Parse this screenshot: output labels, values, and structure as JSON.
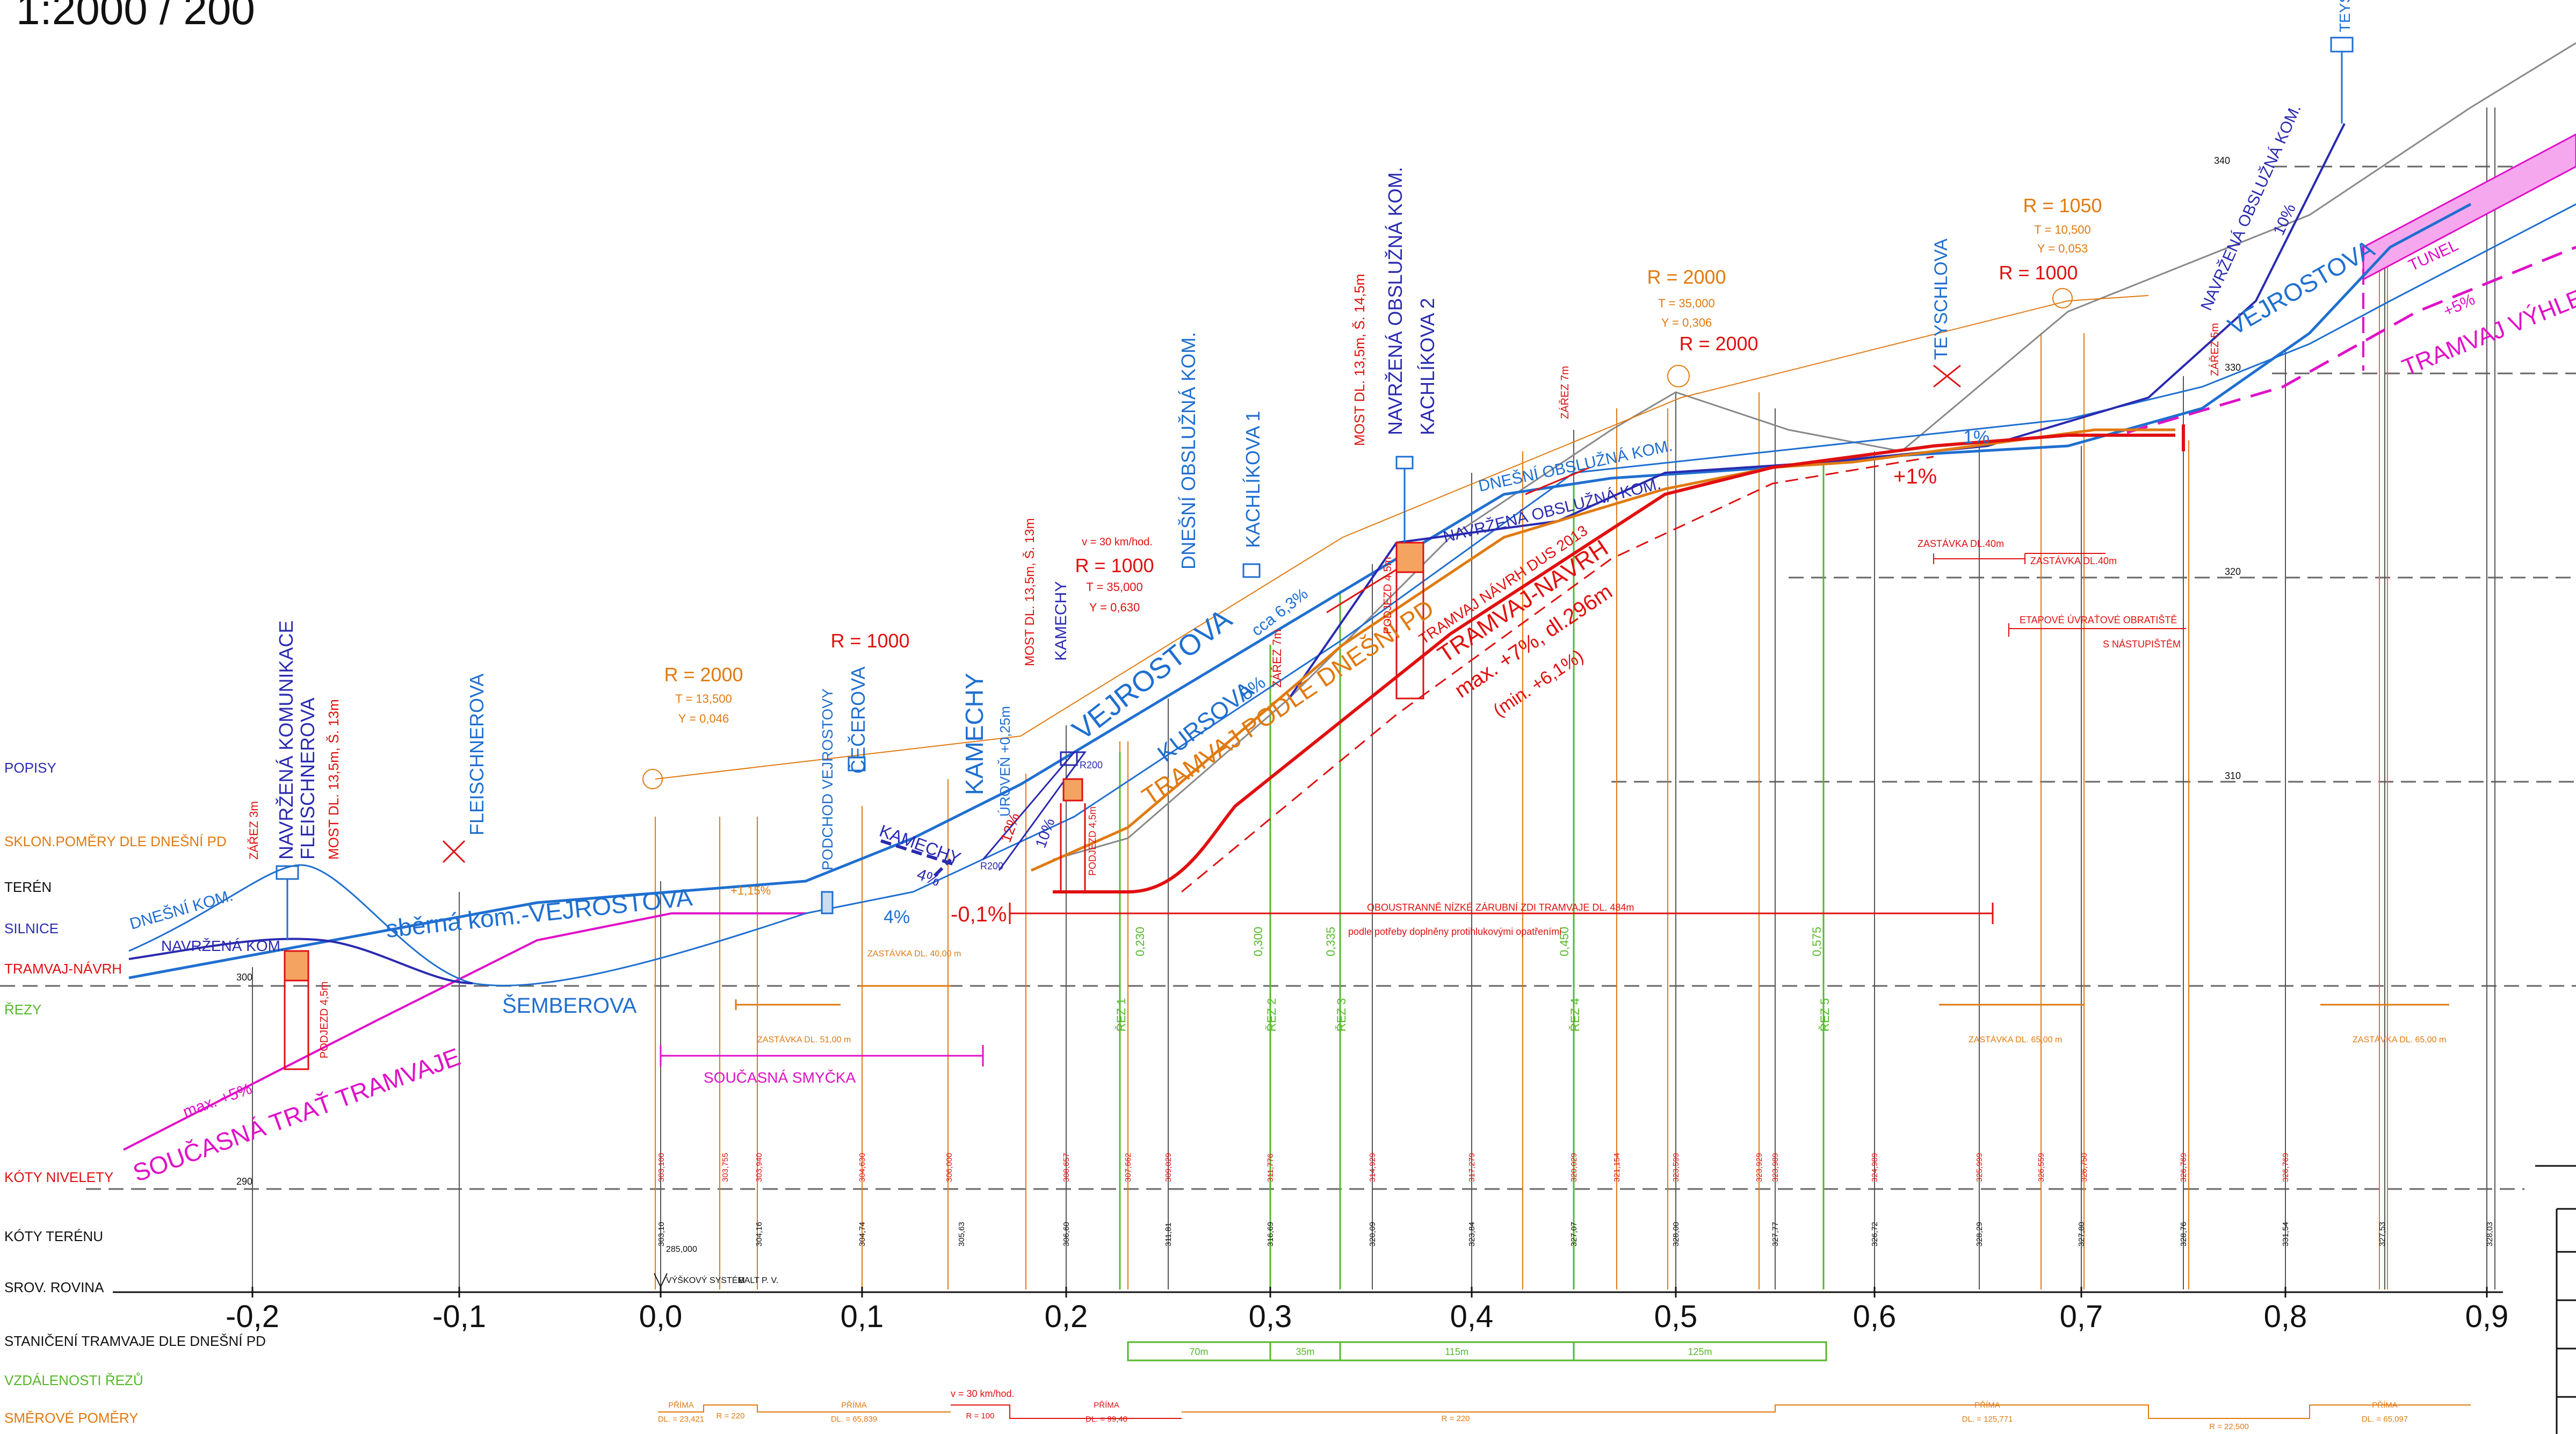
{
  "title": "1:2000 / 200",
  "colors": {
    "blue": "#1f6fd0",
    "navy": "#2a2ab0",
    "red": "#e01010",
    "orange": "#e07a10",
    "green": "#55b82a",
    "magenta": "#e010c8",
    "grey": "#888888",
    "black": "#111111"
  },
  "row_labels": {
    "popisy": "POPISY",
    "sklon": "SKLON.POMĚRY DLE DNEŠNÍ PD",
    "teren": "TERÉN",
    "silnice": "SILNICE",
    "tramvaj": "TRAMVAJ-NÁVRH",
    "rezy": "ŘEZY",
    "koty_nivelety": "KÓTY NIVELETY",
    "koty_terenu": "KÓTY TERÉNU",
    "srov_rovina": "SROV. ROVINA",
    "staniceni": "STANIČENÍ TRAMVAJE DLE DNEŠNÍ PD",
    "vzdalenosti": "VZDÁLENOSTI ŘEZŮ",
    "smerove": "SMĚROVÉ POMĚRY"
  },
  "stations": [
    "-0,2",
    "-0,1",
    "0,0",
    "0,1",
    "0,2",
    "0,3",
    "0,4",
    "0,5",
    "0,6",
    "0,7",
    "0,8",
    "0,9"
  ],
  "elevation_marks": [
    "340",
    "330",
    "320",
    "310",
    "300",
    "290"
  ],
  "datum": {
    "value": "285,000",
    "system": "VÝŠKOVÝ SYSTÉM",
    "system_value": "BALT P. V."
  },
  "labels": {
    "soucasna_trat": "SOUČASNÁ TRAŤ TRAMVAJE",
    "soucasna_max": "max. +5%",
    "soucasna_smycka": "SOUČASNÁ SMYČKA",
    "dnesni_kom": "DNEŠNÍ KOM.",
    "navrzena_kom": "NAVRŽENÁ KOM.",
    "zarez_3m": "ZÁŘEZ 3m",
    "navrzena_komunikace": "NAVRŽENÁ KOMUNIKACE",
    "fleischnerova": "FLEISCHNEROVA",
    "most_135_13": "MOST DL. 13,5m, Š. 13m",
    "podjezd_45": "PODJEZD 4,5m",
    "fleischnerova2": "FLEISCHNEROVA",
    "sberna_kom": "sběrná kom.-VEJROSTOVA",
    "semberova": "ŠEMBEROVA",
    "podchod": "PODCHOD VEJROSTOVY",
    "cecerova": "ČEČEROVA",
    "kamechy": "KAMECHY",
    "uroven": "ÚROVEŇ +0,25m",
    "kamechy_road": "KAMECHY",
    "kamechy_box": "KAMECHY",
    "most_135_13b": "MOST DL. 13,5m, Š. 13m",
    "vejrostova_main": "VEJROSTOVA",
    "dnesni_obsluzna": "DNEŠNÍ OBSLUŽNÁ KOM.",
    "kachlikova1": "KACHLÍKOVA 1",
    "kursova": "KURSOVA",
    "kursova_pct": "8%",
    "cca": "cca 6,3%",
    "zarez_7m": "ZÁŘEZ 7m",
    "tram_podle": "TRAMVAJ PODLE DNEŠNÍ PD",
    "most_135_145": "MOST DL. 13,5m, Š. 14,5m",
    "navrzena_obsluzna": "NAVRŽENÁ OBSLUŽNÁ KOM.",
    "kachlikova2": "KACHLÍKOVA 2",
    "dnesni_obsluzna2": "DNEŠNÍ OBSLUŽNÁ KOM.",
    "navrzena_obsluzna2": "NAVRŽENÁ OBSLUŽNÁ KOM.",
    "podjezd_45b": "PODJEZD 4,5m",
    "tram_navrh_dus": "TRAMVAJ NÁVRH DUS 2013",
    "tram_navrh": "TRAMVAJ-NÁVRH",
    "max_7": "max. +7%, dl.296m",
    "min_61": "(min. +6,1%)",
    "zarez_7m_b": "ZÁŘEZ 7m",
    "teyschlova": "TEYSCHLOVA",
    "pct_1": "1%",
    "pct_plus1": "+1%",
    "navrzena_obsl_top": "NAVRŽENÁ OBSLUŽNÁ KOM.",
    "pct_10": "10%",
    "vejrostova_right": "VEJROSTOVA",
    "tunel": "TUNEL",
    "tram_vyhled": "TRAMVAJ VÝHLED",
    "tram_vyhled_pct": "+5%",
    "zarez_5m": "ZÁŘEZ 5m",
    "teys_top": "TEYS...",
    "pct_01": "-0,1%",
    "pct_4": "4%",
    "pct_4b": "4%",
    "pct_12": "12%",
    "pct_10b": "10%",
    "pct_115": "+1,15%",
    "podjezd_45c": "PODJEZD 4,5m",
    "r200a": "R200",
    "r200b": "R200",
    "zarubni": "OBOUSTRANNĚ NÍZKÉ ZÁRUBNÍ ZDI TRAMVAJE DL. 484m",
    "zarubni2": "podle potřeby doplněny protihlukovými opatřeními",
    "zastavka_40a": "ZASTÁVKA DL.40m",
    "zastavka_40b": "ZASTÁVKA DL.40m",
    "etapove": "ETAPOVÉ ÚVRAŤOVÉ OBRATIŠTĚ",
    "nastupistem": "S NÁSTUPIŠTĚM",
    "zastavka_51": "ZASTÁVKA DL. 51,00 m",
    "zastavka_40_00": "ZASTÁVKA DL. 40,00 m",
    "zastavka_65a": "ZASTÁVKA DL. 65,00 m",
    "zastavka_65b": "ZASTÁVKA DL. 65,00 m",
    "v30": "v = 30 km/hod.",
    "v30b": "v = 30 km/hod."
  },
  "curves": [
    {
      "r": "R = 2000",
      "t": "T = 13,500",
      "y": "Y = 0,046",
      "color": "orange"
    },
    {
      "r": "R = 1000",
      "color": "red"
    },
    {
      "r": "R = 1000",
      "t": "T = 35,000",
      "y": "Y = 0,630",
      "color": "red"
    },
    {
      "r": "R = 2000",
      "t": "T = 35,000",
      "y": "Y = 0,306",
      "color": "orange"
    },
    {
      "r": "R = 2000",
      "color": "red"
    },
    {
      "r": "R = 1050",
      "t": "T = 10,500",
      "y": "Y = 0,053",
      "color": "orange"
    },
    {
      "r": "R = 1000",
      "color": "red"
    }
  ],
  "rezy": [
    "ŘEZ 1",
    "ŘEZ 2",
    "ŘEZ 3",
    "ŘEZ 4",
    "ŘEZ 5"
  ],
  "rez_values": [
    "0,230",
    "0,300",
    "0,335",
    "0,450",
    "0,575"
  ],
  "koty_nivelety": [
    "303,100",
    "303,755",
    "303,940",
    "304,630",
    "306,000",
    "308,657",
    "307,662",
    "309,029",
    "311,776",
    "314,929",
    "317,279",
    "320,029",
    "321,154",
    "323,599",
    "323,929",
    "323,989",
    "324,989",
    "325,999",
    "326,559",
    "326,750",
    "326,769",
    "326,769"
  ],
  "koty_terenu": [
    "303,10",
    "304,16",
    "304,74",
    "305,63",
    "306,60",
    "311,81",
    "316,69",
    "320,09",
    "323,84",
    "327,07",
    "328,00",
    "327,77",
    "326,72",
    "328,29",
    "327,80",
    "328,76",
    "331,54",
    "327,53",
    "328,03"
  ],
  "vzdalenosti": [
    "70m",
    "35m",
    "115m",
    "125m"
  ],
  "smerove": {
    "prima1": "PŘÍMA",
    "dl1": "DL. = 23,421",
    "r220a": "R = 220",
    "prima2": "PŘÍMA",
    "dl2": "DL. = 65,839",
    "r100": "R = 100",
    "prima3": "PŘÍMA",
    "dl3": "DL. = 99,40",
    "r220b": "R = 220",
    "prima4": "PŘÍMA",
    "dl4": "DL. = 125,771",
    "r22500": "R = 22,500",
    "prima5": "PŘÍMA",
    "dl5": "DL. = 65,097"
  }
}
